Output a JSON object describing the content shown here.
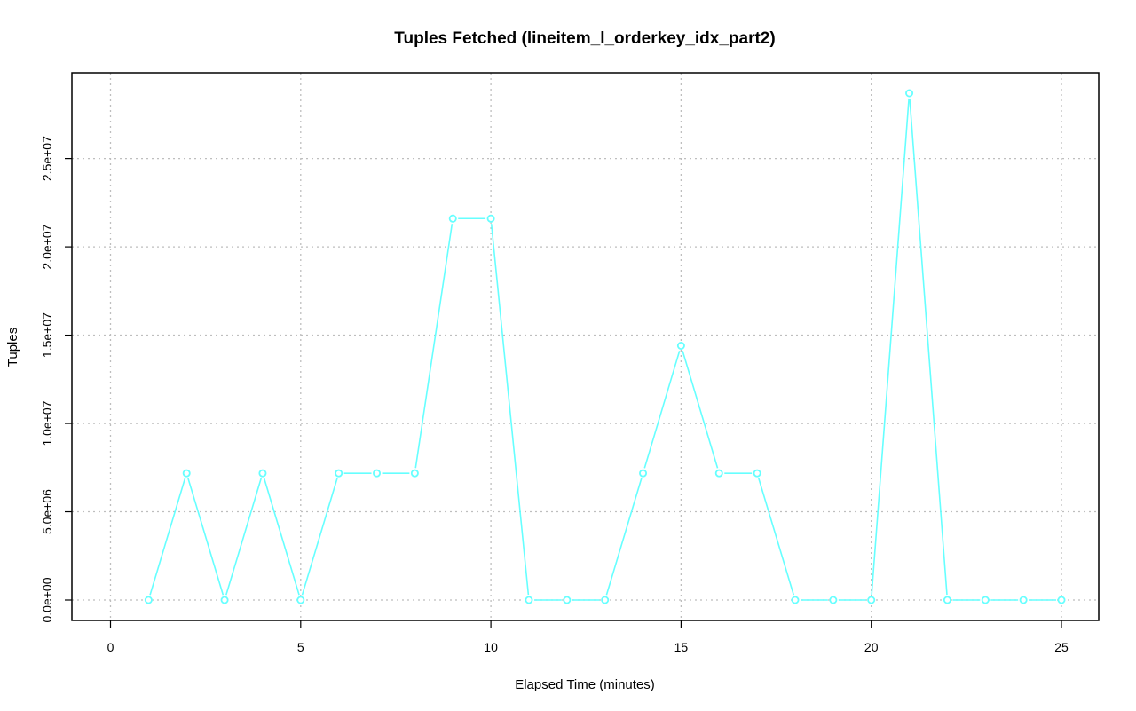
{
  "chart_data": {
    "type": "line",
    "title": "Tuples Fetched (lineitem_l_orderkey_idx_part2)",
    "xlabel": "Elapsed Time (minutes)",
    "ylabel": "Tuples",
    "xlim": [
      0,
      25
    ],
    "ylim": [
      0,
      28700000
    ],
    "x_ticks": [
      0,
      5,
      10,
      15,
      20,
      25
    ],
    "y_ticks": [
      0,
      5000000,
      10000000,
      15000000,
      20000000,
      25000000
    ],
    "y_tick_labels": [
      "0.0e+00",
      "5.0e+06",
      "1.0e+07",
      "1.5e+07",
      "2.0e+07",
      "2.5e+07"
    ],
    "grid": true,
    "series": [
      {
        "color": "#66ffff",
        "marker": "open-circle",
        "x": [
          1,
          2,
          3,
          4,
          5,
          6,
          7,
          8,
          9,
          10,
          11,
          12,
          13,
          14,
          15,
          16,
          17,
          18,
          19,
          20,
          21,
          22,
          23,
          24,
          25
        ],
        "y": [
          0,
          7180000,
          0,
          7180000,
          0,
          7180000,
          7180000,
          7180000,
          21600000,
          21600000,
          0,
          0,
          0,
          7180000,
          14400000,
          7180000,
          7180000,
          0,
          0,
          0,
          28700000,
          0,
          0,
          0,
          0
        ]
      }
    ]
  }
}
